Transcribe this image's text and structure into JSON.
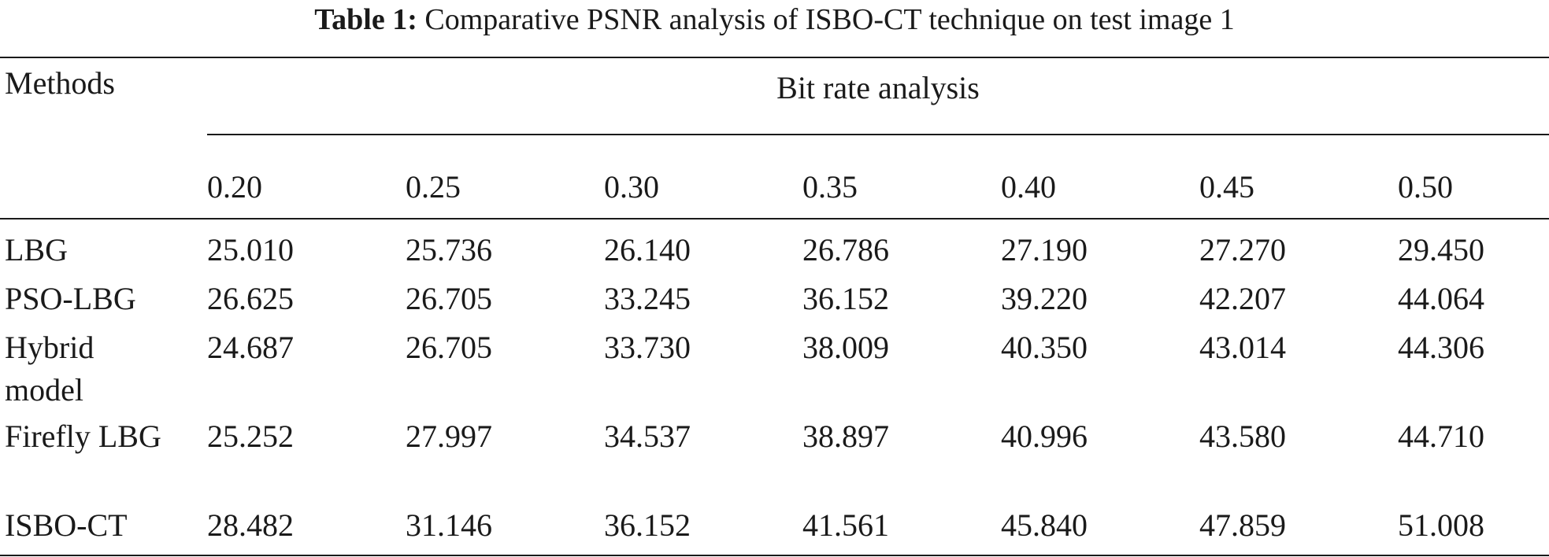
{
  "caption": {
    "label": "Table 1:",
    "text": "Comparative PSNR analysis of ISBO-CT technique on test image 1"
  },
  "table": {
    "methods_header": "Methods",
    "group_header": "Bit rate analysis",
    "bit_rates": [
      "0.20",
      "0.25",
      "0.30",
      "0.35",
      "0.40",
      "0.45",
      "0.50"
    ],
    "rows": [
      {
        "method": "LBG",
        "values": [
          "25.010",
          "25.736",
          "26.140",
          "26.786",
          "27.190",
          "27.270",
          "29.450"
        ]
      },
      {
        "method": "PSO-LBG",
        "values": [
          "26.625",
          "26.705",
          "33.245",
          "36.152",
          "39.220",
          "42.207",
          "44.064"
        ]
      },
      {
        "method": "Hybrid model",
        "values": [
          "24.687",
          "26.705",
          "33.730",
          "38.009",
          "40.350",
          "43.014",
          "44.306"
        ]
      },
      {
        "method": "Firefly LBG",
        "values": [
          "25.252",
          "27.997",
          "34.537",
          "38.897",
          "40.996",
          "43.580",
          "44.710"
        ]
      },
      {
        "method": "ISBO-CT",
        "values": [
          "28.482",
          "31.146",
          "36.152",
          "41.561",
          "45.840",
          "47.859",
          "51.008"
        ]
      }
    ]
  }
}
